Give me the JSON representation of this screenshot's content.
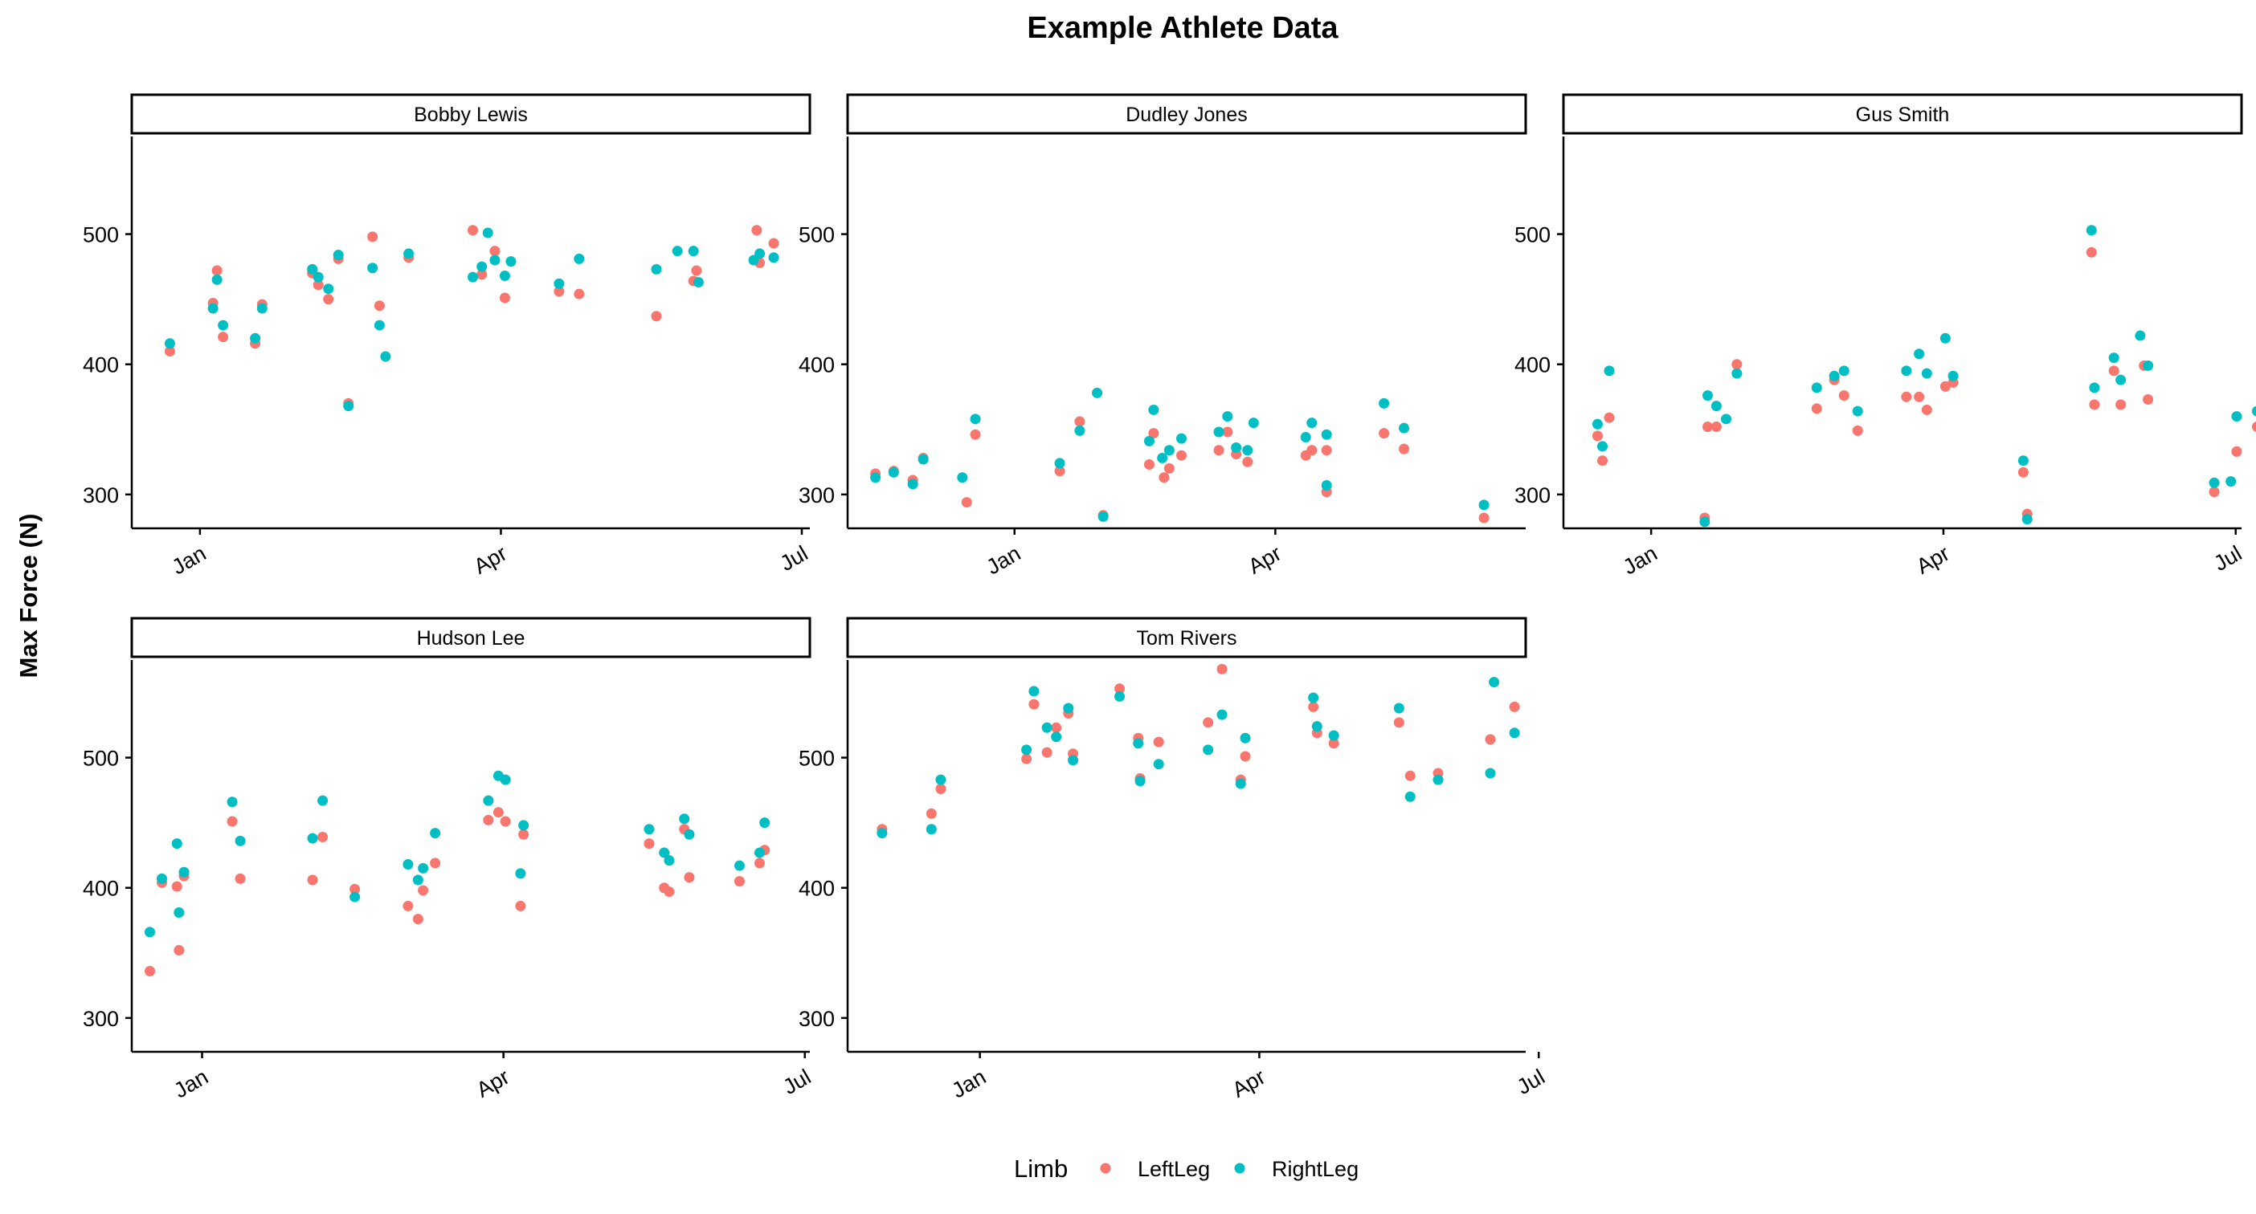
{
  "chart_data": {
    "type": "scatter",
    "title": "Example Athlete Data",
    "ylabel": "Max Force (N)",
    "xlabel": "",
    "y_ticks": [
      300,
      400,
      500
    ],
    "legend": {
      "title": "Limb",
      "placement": "bottom",
      "items": [
        {
          "name": "LeftLeg",
          "color": "#F8766D"
        },
        {
          "name": "RightLeg",
          "color": "#00BFC4"
        }
      ]
    },
    "series_colors": {
      "LeftLeg": "#F8766D",
      "RightLeg": "#00BFC4"
    },
    "grid": false,
    "panels": [
      {
        "name": "Bobby Lewis",
        "x_ticks": [
          "Jan",
          "Apr",
          "Jul"
        ],
        "xlim": [
          -0.68,
          6.08
        ],
        "ylim": [
          274,
          575
        ],
        "LeftLeg": [
          [
            -0.3,
            410
          ],
          [
            0.17,
            472
          ],
          [
            0.13,
            447
          ],
          [
            0.23,
            421
          ],
          [
            0.55,
            416
          ],
          [
            0.62,
            446
          ],
          [
            1.12,
            470
          ],
          [
            1.18,
            461
          ],
          [
            1.28,
            450
          ],
          [
            1.38,
            481
          ],
          [
            1.48,
            370
          ],
          [
            1.72,
            498
          ],
          [
            1.79,
            445
          ],
          [
            2.08,
            482
          ],
          [
            2.72,
            503
          ],
          [
            2.81,
            469
          ],
          [
            2.94,
            487
          ],
          [
            3.04,
            451
          ],
          [
            3.58,
            456
          ],
          [
            3.78,
            454
          ],
          [
            4.55,
            437
          ],
          [
            4.95,
            472
          ],
          [
            4.92,
            464
          ],
          [
            5.55,
            503
          ],
          [
            5.58,
            478
          ],
          [
            5.72,
            493
          ]
        ],
        "RightLeg": [
          [
            -0.3,
            416
          ],
          [
            0.17,
            465
          ],
          [
            0.13,
            443
          ],
          [
            0.23,
            430
          ],
          [
            0.55,
            420
          ],
          [
            0.62,
            443
          ],
          [
            1.12,
            473
          ],
          [
            1.18,
            467
          ],
          [
            1.28,
            458
          ],
          [
            1.38,
            484
          ],
          [
            1.48,
            368
          ],
          [
            1.72,
            474
          ],
          [
            1.79,
            430
          ],
          [
            1.85,
            406
          ],
          [
            2.08,
            485
          ],
          [
            2.72,
            467
          ],
          [
            2.81,
            475
          ],
          [
            2.87,
            501
          ],
          [
            2.94,
            480
          ],
          [
            3.04,
            468
          ],
          [
            3.1,
            479
          ],
          [
            3.58,
            462
          ],
          [
            3.78,
            481
          ],
          [
            4.55,
            473
          ],
          [
            4.76,
            487
          ],
          [
            4.92,
            487
          ],
          [
            4.97,
            463
          ],
          [
            5.52,
            480
          ],
          [
            5.58,
            485
          ],
          [
            5.72,
            482
          ]
        ]
      },
      {
        "name": "Dudley Jones",
        "x_ticks": [
          "Jan",
          "Apr"
        ],
        "xlim": [
          -1.92,
          5.88
        ],
        "ylim": [
          274,
          575
        ],
        "LeftLeg": [
          [
            -1.6,
            316
          ],
          [
            -1.39,
            318
          ],
          [
            -1.17,
            311
          ],
          [
            -1.05,
            328
          ],
          [
            -0.55,
            294
          ],
          [
            -0.45,
            346
          ],
          [
            0.52,
            318
          ],
          [
            0.75,
            356
          ],
          [
            1.02,
            284
          ],
          [
            1.55,
            323
          ],
          [
            1.6,
            347
          ],
          [
            1.72,
            313
          ],
          [
            1.78,
            320
          ],
          [
            1.92,
            330
          ],
          [
            2.35,
            334
          ],
          [
            2.45,
            348
          ],
          [
            2.55,
            331
          ],
          [
            2.68,
            325
          ],
          [
            3.35,
            330
          ],
          [
            3.42,
            334
          ],
          [
            3.59,
            302
          ],
          [
            3.59,
            334
          ],
          [
            4.25,
            347
          ],
          [
            4.48,
            335
          ],
          [
            5.4,
            282
          ]
        ],
        "RightLeg": [
          [
            -1.6,
            313
          ],
          [
            -1.39,
            317
          ],
          [
            -1.17,
            308
          ],
          [
            -1.05,
            327
          ],
          [
            -0.6,
            313
          ],
          [
            -0.45,
            358
          ],
          [
            0.52,
            324
          ],
          [
            0.75,
            349
          ],
          [
            0.95,
            378
          ],
          [
            1.02,
            283
          ],
          [
            1.55,
            341
          ],
          [
            1.6,
            365
          ],
          [
            1.7,
            328
          ],
          [
            1.78,
            334
          ],
          [
            1.92,
            343
          ],
          [
            2.35,
            348
          ],
          [
            2.45,
            360
          ],
          [
            2.55,
            336
          ],
          [
            2.68,
            334
          ],
          [
            2.75,
            355
          ],
          [
            3.35,
            344
          ],
          [
            3.42,
            355
          ],
          [
            3.59,
            346
          ],
          [
            3.59,
            307
          ],
          [
            4.25,
            370
          ],
          [
            4.48,
            351
          ],
          [
            5.4,
            292
          ]
        ]
      },
      {
        "name": "Gus Smith",
        "x_ticks": [
          "Jan",
          "Apr",
          "Jul"
        ],
        "xlim": [
          -0.9,
          6.06
        ],
        "ylim": [
          274,
          575
        ],
        "LeftLeg": [
          [
            -0.55,
            345
          ],
          [
            -0.5,
            326
          ],
          [
            -0.43,
            359
          ],
          [
            0.55,
            282
          ],
          [
            0.58,
            352
          ],
          [
            0.67,
            352
          ],
          [
            0.88,
            400
          ],
          [
            1.7,
            366
          ],
          [
            1.88,
            388
          ],
          [
            1.98,
            376
          ],
          [
            2.12,
            349
          ],
          [
            2.62,
            375
          ],
          [
            2.75,
            375
          ],
          [
            2.83,
            365
          ],
          [
            3.02,
            383
          ],
          [
            3.1,
            386
          ],
          [
            3.82,
            317
          ],
          [
            3.86,
            285
          ],
          [
            4.52,
            486
          ],
          [
            4.55,
            369
          ],
          [
            4.75,
            395
          ],
          [
            4.82,
            369
          ],
          [
            5.06,
            399
          ],
          [
            5.1,
            373
          ],
          [
            5.78,
            302
          ],
          [
            6.01,
            333
          ],
          [
            6.22,
            352
          ]
        ],
        "RightLeg": [
          [
            -0.55,
            354
          ],
          [
            -0.5,
            337
          ],
          [
            -0.43,
            395
          ],
          [
            0.55,
            279
          ],
          [
            0.58,
            376
          ],
          [
            0.67,
            368
          ],
          [
            0.77,
            358
          ],
          [
            0.88,
            393
          ],
          [
            1.7,
            382
          ],
          [
            1.88,
            391
          ],
          [
            1.98,
            395
          ],
          [
            2.12,
            364
          ],
          [
            2.62,
            395
          ],
          [
            2.75,
            408
          ],
          [
            2.83,
            393
          ],
          [
            3.02,
            420
          ],
          [
            3.1,
            391
          ],
          [
            3.82,
            326
          ],
          [
            3.86,
            281
          ],
          [
            4.52,
            503
          ],
          [
            4.55,
            382
          ],
          [
            4.75,
            405
          ],
          [
            4.82,
            388
          ],
          [
            5.02,
            422
          ],
          [
            5.1,
            399
          ],
          [
            5.78,
            309
          ],
          [
            5.95,
            310
          ],
          [
            6.01,
            360
          ],
          [
            6.22,
            364
          ]
        ]
      },
      {
        "name": "Hudson Lee",
        "x_ticks": [
          "Jan",
          "Apr",
          "Jul"
        ],
        "xlim": [
          -0.7,
          6.05
        ],
        "ylim": [
          274,
          575
        ],
        "LeftLeg": [
          [
            -0.52,
            336
          ],
          [
            -0.4,
            404
          ],
          [
            -0.25,
            401
          ],
          [
            -0.23,
            352
          ],
          [
            -0.18,
            409
          ],
          [
            0.3,
            451
          ],
          [
            0.38,
            407
          ],
          [
            1.1,
            406
          ],
          [
            1.2,
            439
          ],
          [
            1.52,
            399
          ],
          [
            2.05,
            386
          ],
          [
            2.15,
            376
          ],
          [
            2.2,
            398
          ],
          [
            2.32,
            419
          ],
          [
            2.85,
            452
          ],
          [
            2.95,
            458
          ],
          [
            3.02,
            451
          ],
          [
            3.17,
            386
          ],
          [
            3.2,
            441
          ],
          [
            4.45,
            434
          ],
          [
            4.6,
            400
          ],
          [
            4.65,
            397
          ],
          [
            4.8,
            445
          ],
          [
            4.85,
            408
          ],
          [
            5.35,
            405
          ],
          [
            5.55,
            419
          ],
          [
            5.6,
            429
          ]
        ],
        "RightLeg": [
          [
            -0.52,
            366
          ],
          [
            -0.4,
            407
          ],
          [
            -0.25,
            434
          ],
          [
            -0.23,
            381
          ],
          [
            -0.18,
            412
          ],
          [
            0.3,
            466
          ],
          [
            0.38,
            436
          ],
          [
            1.1,
            438
          ],
          [
            1.2,
            467
          ],
          [
            1.52,
            393
          ],
          [
            2.05,
            418
          ],
          [
            2.15,
            406
          ],
          [
            2.2,
            415
          ],
          [
            2.32,
            442
          ],
          [
            2.85,
            467
          ],
          [
            2.95,
            486
          ],
          [
            3.02,
            483
          ],
          [
            3.17,
            411
          ],
          [
            3.2,
            448
          ],
          [
            4.45,
            445
          ],
          [
            4.6,
            427
          ],
          [
            4.65,
            421
          ],
          [
            4.8,
            453
          ],
          [
            4.85,
            441
          ],
          [
            5.35,
            417
          ],
          [
            5.55,
            427
          ],
          [
            5.6,
            450
          ]
        ]
      },
      {
        "name": "Tom Rivers",
        "x_ticks": [
          "Jan",
          "Apr",
          "Jul"
        ],
        "xlim": [
          -1.42,
          5.86
        ],
        "ylim": [
          274,
          575
        ],
        "LeftLeg": [
          [
            -1.05,
            445
          ],
          [
            -0.52,
            457
          ],
          [
            -0.42,
            476
          ],
          [
            0.5,
            499
          ],
          [
            0.58,
            541
          ],
          [
            0.72,
            504
          ],
          [
            0.82,
            523
          ],
          [
            0.95,
            534
          ],
          [
            1.0,
            503
          ],
          [
            1.5,
            553
          ],
          [
            1.7,
            515
          ],
          [
            1.72,
            484
          ],
          [
            1.92,
            512
          ],
          [
            2.45,
            527
          ],
          [
            2.6,
            568
          ],
          [
            2.8,
            483
          ],
          [
            2.85,
            501
          ],
          [
            3.58,
            539
          ],
          [
            3.62,
            519
          ],
          [
            3.8,
            511
          ],
          [
            4.5,
            527
          ],
          [
            4.62,
            486
          ],
          [
            4.92,
            488
          ],
          [
            5.48,
            514
          ],
          [
            5.74,
            539
          ]
        ],
        "RightLeg": [
          [
            -1.05,
            442
          ],
          [
            -0.52,
            445
          ],
          [
            -0.42,
            483
          ],
          [
            0.5,
            506
          ],
          [
            0.58,
            551
          ],
          [
            0.72,
            523
          ],
          [
            0.82,
            516
          ],
          [
            0.95,
            538
          ],
          [
            1.0,
            498
          ],
          [
            1.5,
            547
          ],
          [
            1.7,
            511
          ],
          [
            1.72,
            482
          ],
          [
            1.92,
            495
          ],
          [
            2.45,
            506
          ],
          [
            2.6,
            533
          ],
          [
            2.8,
            480
          ],
          [
            2.85,
            515
          ],
          [
            3.58,
            546
          ],
          [
            3.62,
            524
          ],
          [
            3.8,
            517
          ],
          [
            4.5,
            538
          ],
          [
            4.62,
            470
          ],
          [
            4.92,
            483
          ],
          [
            5.48,
            488
          ],
          [
            5.52,
            558
          ],
          [
            5.74,
            519
          ]
        ]
      }
    ]
  }
}
